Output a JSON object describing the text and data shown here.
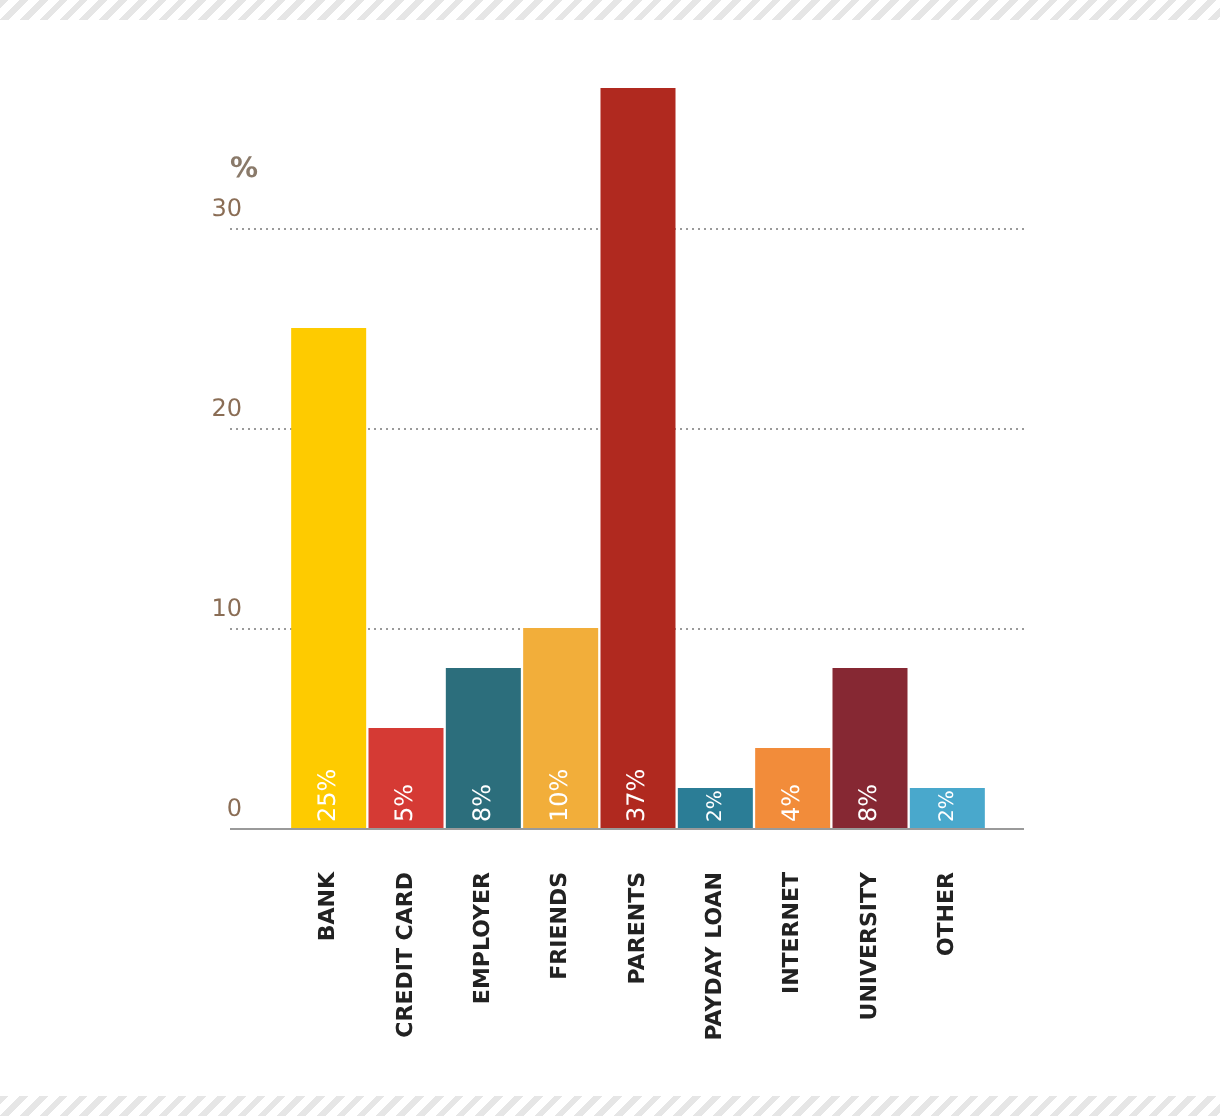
{
  "chart_data": {
    "type": "bar",
    "ylabel": "%",
    "categories": [
      "BANK",
      "CREDIT CARD",
      "EMPLOYER",
      "FRIENDS",
      "PARENTS",
      "PAYDAY LOAN",
      "INTERNET",
      "UNIVERSITY",
      "OTHER"
    ],
    "values": [
      25,
      5,
      8,
      10,
      37,
      2,
      4,
      8,
      2
    ],
    "colors": [
      "#fecb00",
      "#d53a34",
      "#2c6e7c",
      "#f2ae3a",
      "#b0291f",
      "#2b7d96",
      "#f28c3a",
      "#862833",
      "#49a8cc"
    ],
    "value_labels": [
      "25%",
      "5%",
      "8%",
      "10%",
      "37%",
      "2%",
      "4%",
      "8%",
      "2%"
    ],
    "ylim": [
      0,
      37
    ],
    "yticks": [
      0,
      10,
      20,
      30
    ],
    "grid": "y"
  }
}
